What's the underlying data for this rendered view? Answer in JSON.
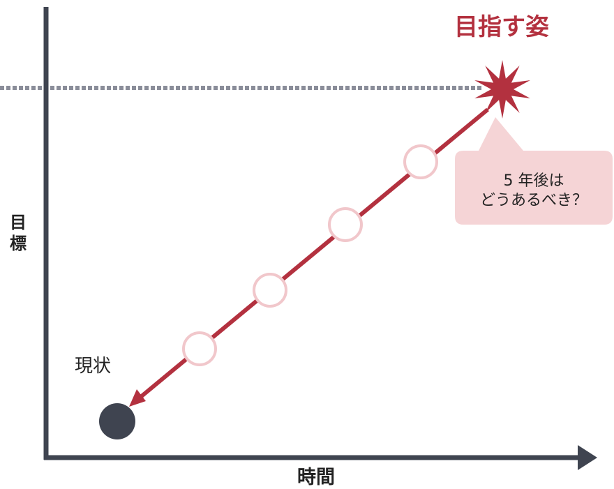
{
  "title": "目指す姿",
  "current_label": "現状",
  "y_axis": {
    "line1": "目",
    "line2": "標"
  },
  "x_axis": {
    "label": "時間"
  },
  "callout": {
    "line1": "5 年後は",
    "line2": "どうあるべき？"
  },
  "colors": {
    "accent": "#b3313f",
    "axis": "#3f4450",
    "dashed_line": "#8a8d99",
    "milestone_stroke": "#f1c7cb",
    "callout_fill": "#f5d4d6",
    "current_dot": "#3f4450"
  },
  "icons": {
    "goal": "starburst-icon",
    "current": "circle-dot-icon"
  },
  "milestones": 4
}
